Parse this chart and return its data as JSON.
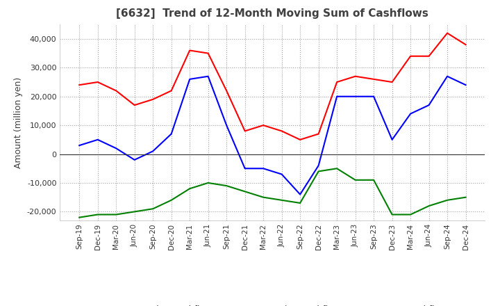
{
  "title": "[6632]  Trend of 12-Month Moving Sum of Cashflows",
  "ylabel": "Amount (million yen)",
  "ylim": [
    -23000,
    45000
  ],
  "yticks": [
    -20000,
    -10000,
    0,
    10000,
    20000,
    30000,
    40000
  ],
  "x_labels": [
    "Sep-19",
    "Dec-19",
    "Mar-20",
    "Jun-20",
    "Sep-20",
    "Dec-20",
    "Mar-21",
    "Jun-21",
    "Sep-21",
    "Dec-21",
    "Mar-22",
    "Jun-22",
    "Sep-22",
    "Dec-22",
    "Mar-23",
    "Jun-23",
    "Sep-23",
    "Dec-23",
    "Mar-24",
    "Jun-24",
    "Sep-24",
    "Dec-24"
  ],
  "operating": [
    24000,
    25000,
    22000,
    17000,
    19000,
    22000,
    36000,
    35000,
    22000,
    8000,
    10000,
    8000,
    5000,
    7000,
    25000,
    27000,
    26000,
    25000,
    34000,
    34000,
    42000,
    38000
  ],
  "investing": [
    -22000,
    -21000,
    -21000,
    -20000,
    -19000,
    -16000,
    -12000,
    -10000,
    -11000,
    -13000,
    -15000,
    -16000,
    -17000,
    -6000,
    -5000,
    -9000,
    -9000,
    -21000,
    -21000,
    -18000,
    -16000,
    -15000
  ],
  "free": [
    3000,
    5000,
    2000,
    -2000,
    1000,
    7000,
    26000,
    27000,
    10000,
    -5000,
    -5000,
    -7000,
    -14000,
    -4000,
    20000,
    20000,
    20000,
    5000,
    14000,
    17000,
    27000,
    24000
  ],
  "op_color": "#ff0000",
  "inv_color": "#008000",
  "free_color": "#0000ff",
  "bg_color": "#ffffff",
  "grid_color": "#a0a0a0",
  "title_color": "#404040"
}
